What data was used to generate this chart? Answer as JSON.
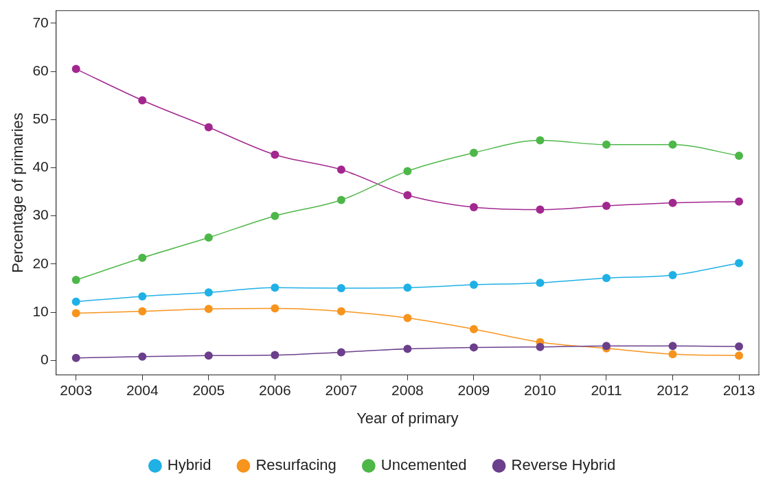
{
  "chart_data": {
    "type": "line",
    "xlabel": "Year of primary",
    "ylabel": "Percentage of primaries",
    "x": [
      2003,
      2004,
      2005,
      2006,
      2007,
      2008,
      2009,
      2010,
      2011,
      2012,
      2013
    ],
    "xlim": [
      2002.7,
      2013.3
    ],
    "xticks": [
      2003,
      2004,
      2005,
      2006,
      2007,
      2008,
      2009,
      2010,
      2011,
      2012,
      2013
    ],
    "ylim": [
      -3,
      72.6
    ],
    "yticks": [
      0,
      10,
      20,
      30,
      40,
      50,
      60,
      70
    ],
    "grid": false,
    "legend": "bottom",
    "marker": "circle",
    "line_style": "solid",
    "series": [
      {
        "color": "#a2278f",
        "values": [
          60.5,
          54.0,
          48.4,
          42.7,
          39.6,
          34.3,
          31.8,
          31.3,
          32.1,
          32.7,
          33.0
        ]
      },
      {
        "name": "Hybrid",
        "color": "#1fb0e6",
        "values": [
          12.2,
          13.3,
          14.1,
          15.1,
          15.0,
          15.1,
          15.7,
          16.1,
          17.1,
          17.7,
          20.2
        ]
      },
      {
        "name": "Resurfacing",
        "color": "#f7941d",
        "values": [
          9.8,
          10.2,
          10.7,
          10.8,
          10.2,
          8.8,
          6.5,
          3.8,
          2.5,
          1.3,
          1.0
        ]
      },
      {
        "name": "Uncemented",
        "color": "#4db748",
        "values": [
          16.7,
          21.3,
          25.5,
          30.0,
          33.3,
          39.3,
          43.1,
          45.7,
          44.8,
          44.8,
          42.5
        ]
      },
      {
        "name": "Reverse Hybrid",
        "color": "#6b3f8c",
        "values": [
          0.5,
          0.8,
          1.0,
          1.1,
          1.7,
          2.4,
          2.7,
          2.8,
          3.0,
          3.0,
          2.9
        ]
      }
    ]
  }
}
